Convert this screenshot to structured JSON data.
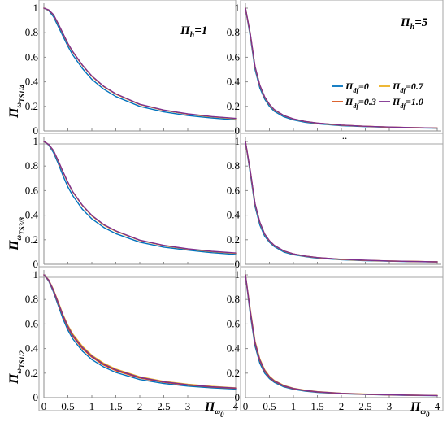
{
  "chart_data": {
    "type": "line",
    "layout": "3x2 grid of panels",
    "xlim": [
      0,
      4
    ],
    "ylim": [
      0,
      1
    ],
    "xticks": [
      "0",
      "0.5",
      "1",
      "1.5",
      "2",
      "2.5",
      "3",
      "4"
    ],
    "yticks": [
      "0",
      "0.2",
      "0.4",
      "0.6",
      "0.8",
      "1"
    ],
    "xlabel": {
      "main": "Π",
      "sub": "ω",
      "subsub": "0"
    },
    "legend": {
      "placement": "inside upper-right panel",
      "entries": [
        {
          "main": "Π",
          "sub": "df",
          "val": "=0",
          "color": "#0072BD"
        },
        {
          "main": "Π",
          "sub": "df",
          "val": "=0.7",
          "color": "#EDB120"
        },
        {
          "main": "Π",
          "sub": "df",
          "val": "=0.3",
          "color": "#D95319"
        },
        {
          "main": "Π",
          "sub": "df",
          "val": "=1.0",
          "color": "#7E2F8E"
        }
      ]
    },
    "column_titles": [
      {
        "main": "Π",
        "sub": "h",
        "val": "=1"
      },
      {
        "main": "Π",
        "sub": "h",
        "val": "=5"
      }
    ],
    "row_ylabels": [
      {
        "main": "Π",
        "sub": "ω",
        "subsub": "TS1/4"
      },
      {
        "main": "Π",
        "sub": "ω",
        "subsub": "TS3/8"
      },
      {
        "main": "Π",
        "sub": "ω",
        "subsub": "TS1/2"
      }
    ],
    "stray_mark": "..",
    "x": [
      0,
      0.1,
      0.2,
      0.3,
      0.4,
      0.5,
      0.6,
      0.8,
      1.0,
      1.25,
      1.5,
      2.0,
      2.5,
      3.0,
      3.5,
      4.0
    ],
    "panels": [
      {
        "row": 0,
        "col": 0,
        "series": [
          {
            "color": "#0072BD",
            "values": [
              1.0,
              0.98,
              0.93,
              0.85,
              0.77,
              0.69,
              0.62,
              0.51,
              0.42,
              0.34,
              0.28,
              0.2,
              0.155,
              0.125,
              0.105,
              0.09
            ]
          },
          {
            "color": "#D95319",
            "values": [
              1.0,
              0.985,
              0.945,
              0.87,
              0.79,
              0.71,
              0.645,
              0.535,
              0.445,
              0.36,
              0.3,
              0.215,
              0.168,
              0.137,
              0.115,
              0.1
            ]
          },
          {
            "color": "#EDB120",
            "values": [
              1.0,
              0.985,
              0.945,
              0.87,
              0.79,
              0.71,
              0.645,
              0.535,
              0.445,
              0.36,
              0.3,
              0.215,
              0.168,
              0.137,
              0.115,
              0.1
            ]
          },
          {
            "color": "#7E2F8E",
            "values": [
              1.0,
              0.986,
              0.947,
              0.873,
              0.793,
              0.713,
              0.648,
              0.538,
              0.448,
              0.363,
              0.302,
              0.217,
              0.17,
              0.139,
              0.117,
              0.102
            ]
          }
        ]
      },
      {
        "row": 0,
        "col": 1,
        "series": [
          {
            "color": "#0072BD",
            "values": [
              1.0,
              0.77,
              0.5,
              0.35,
              0.26,
              0.2,
              0.16,
              0.115,
              0.09,
              0.07,
              0.058,
              0.043,
              0.035,
              0.029,
              0.025,
              0.022
            ]
          },
          {
            "color": "#D95319",
            "values": [
              1.0,
              0.79,
              0.52,
              0.37,
              0.275,
              0.215,
              0.172,
              0.125,
              0.097,
              0.076,
              0.063,
              0.047,
              0.038,
              0.031,
              0.027,
              0.024
            ]
          },
          {
            "color": "#EDB120",
            "values": [
              1.0,
              0.79,
              0.52,
              0.37,
              0.275,
              0.215,
              0.172,
              0.125,
              0.097,
              0.076,
              0.063,
              0.047,
              0.038,
              0.031,
              0.027,
              0.024
            ]
          },
          {
            "color": "#7E2F8E",
            "values": [
              1.0,
              0.795,
              0.525,
              0.373,
              0.278,
              0.217,
              0.174,
              0.126,
              0.098,
              0.077,
              0.064,
              0.048,
              0.038,
              0.032,
              0.027,
              0.024
            ]
          }
        ]
      },
      {
        "row": 1,
        "col": 0,
        "series": [
          {
            "color": "#0072BD",
            "values": [
              1.0,
              0.97,
              0.91,
              0.82,
              0.72,
              0.63,
              0.56,
              0.45,
              0.37,
              0.3,
              0.25,
              0.18,
              0.14,
              0.115,
              0.095,
              0.08
            ]
          },
          {
            "color": "#D95319",
            "values": [
              1.0,
              0.975,
              0.925,
              0.84,
              0.75,
              0.665,
              0.59,
              0.48,
              0.395,
              0.32,
              0.27,
              0.195,
              0.152,
              0.124,
              0.104,
              0.09
            ]
          },
          {
            "color": "#EDB120",
            "values": [
              1.0,
              0.975,
              0.925,
              0.84,
              0.75,
              0.665,
              0.59,
              0.48,
              0.395,
              0.32,
              0.27,
              0.195,
              0.152,
              0.124,
              0.104,
              0.09
            ]
          },
          {
            "color": "#7E2F8E",
            "values": [
              1.0,
              0.976,
              0.927,
              0.843,
              0.753,
              0.668,
              0.593,
              0.483,
              0.398,
              0.323,
              0.272,
              0.197,
              0.154,
              0.126,
              0.106,
              0.092
            ]
          }
        ]
      },
      {
        "row": 1,
        "col": 1,
        "series": [
          {
            "color": "#0072BD",
            "values": [
              1.0,
              0.74,
              0.47,
              0.32,
              0.23,
              0.18,
              0.145,
              0.1,
              0.078,
              0.062,
              0.05,
              0.037,
              0.03,
              0.025,
              0.021,
              0.019
            ]
          },
          {
            "color": "#D95319",
            "values": [
              1.0,
              0.76,
              0.49,
              0.34,
              0.245,
              0.19,
              0.153,
              0.108,
              0.084,
              0.066,
              0.054,
              0.04,
              0.032,
              0.027,
              0.023,
              0.02
            ]
          },
          {
            "color": "#EDB120",
            "values": [
              1.0,
              0.76,
              0.49,
              0.34,
              0.245,
              0.19,
              0.153,
              0.108,
              0.084,
              0.066,
              0.054,
              0.04,
              0.032,
              0.027,
              0.023,
              0.02
            ]
          },
          {
            "color": "#7E2F8E",
            "values": [
              1.0,
              0.765,
              0.495,
              0.343,
              0.248,
              0.192,
              0.155,
              0.109,
              0.085,
              0.067,
              0.055,
              0.041,
              0.033,
              0.027,
              0.023,
              0.02
            ]
          }
        ]
      },
      {
        "row": 2,
        "col": 0,
        "series": [
          {
            "color": "#0072BD",
            "values": [
              1.0,
              0.95,
              0.86,
              0.75,
              0.64,
              0.55,
              0.48,
              0.38,
              0.31,
              0.25,
              0.205,
              0.148,
              0.115,
              0.094,
              0.08,
              0.07
            ]
          },
          {
            "color": "#D95319",
            "values": [
              1.0,
              0.955,
              0.87,
              0.765,
              0.66,
              0.57,
              0.5,
              0.4,
              0.33,
              0.265,
              0.22,
              0.16,
              0.125,
              0.102,
              0.087,
              0.076
            ]
          },
          {
            "color": "#EDB120",
            "values": [
              1.0,
              0.96,
              0.88,
              0.78,
              0.675,
              0.59,
              0.52,
              0.42,
              0.345,
              0.28,
              0.233,
              0.17,
              0.133,
              0.109,
              0.092,
              0.08
            ]
          },
          {
            "color": "#7E2F8E",
            "values": [
              1.0,
              0.958,
              0.875,
              0.772,
              0.668,
              0.58,
              0.51,
              0.41,
              0.338,
              0.272,
              0.227,
              0.165,
              0.129,
              0.105,
              0.089,
              0.078
            ]
          }
        ]
      },
      {
        "row": 2,
        "col": 1,
        "series": [
          {
            "color": "#0072BD",
            "values": [
              1.0,
              0.68,
              0.42,
              0.28,
              0.2,
              0.155,
              0.125,
              0.088,
              0.068,
              0.053,
              0.043,
              0.032,
              0.026,
              0.021,
              0.018,
              0.016
            ]
          },
          {
            "color": "#D95319",
            "values": [
              1.0,
              0.7,
              0.44,
              0.3,
              0.215,
              0.165,
              0.133,
              0.094,
              0.072,
              0.057,
              0.046,
              0.034,
              0.027,
              0.022,
              0.019,
              0.017
            ]
          },
          {
            "color": "#EDB120",
            "values": [
              1.0,
              0.72,
              0.46,
              0.315,
              0.228,
              0.175,
              0.141,
              0.1,
              0.077,
              0.06,
              0.049,
              0.036,
              0.029,
              0.024,
              0.02,
              0.018
            ]
          },
          {
            "color": "#7E2F8E",
            "values": [
              1.0,
              0.71,
              0.45,
              0.308,
              0.222,
              0.17,
              0.137,
              0.097,
              0.075,
              0.058,
              0.048,
              0.035,
              0.028,
              0.023,
              0.02,
              0.017
            ]
          }
        ]
      }
    ]
  }
}
